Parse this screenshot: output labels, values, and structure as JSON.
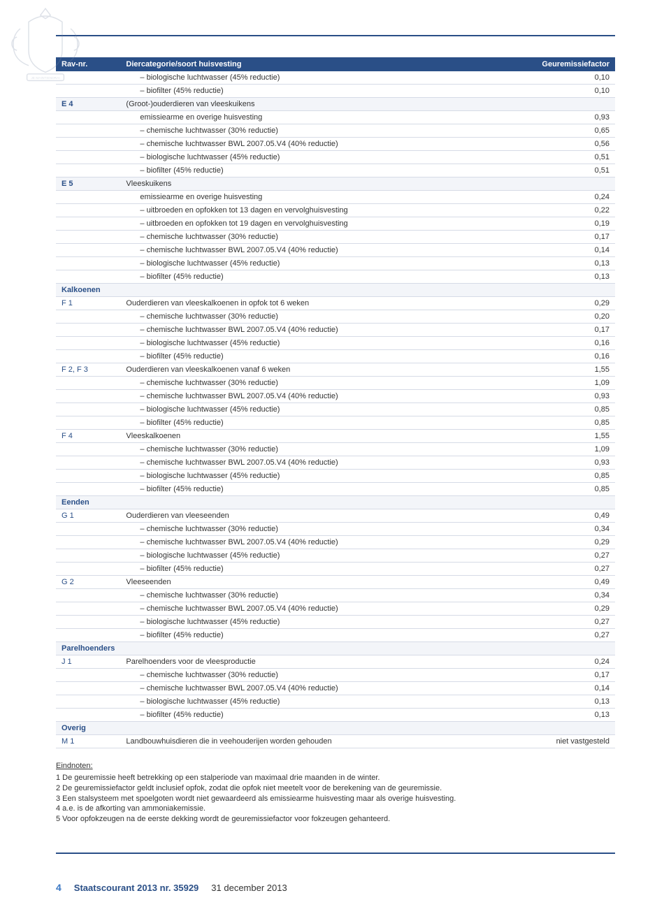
{
  "colors": {
    "header_bg": "#2a4f87",
    "header_text": "#ffffff",
    "row_border": "#d6dbe6",
    "cat_bg": "#f3f5f9",
    "rav_text": "#2a4f87",
    "footer_pn": "#3b78c4"
  },
  "header": {
    "c1": "Rav-nr.",
    "c2": "Diercategorie/soort huisvesting",
    "c3": "Geuremissiefactor"
  },
  "rows": [
    {
      "rav": "",
      "desc": "– biologische luchtwasser (45% reductie)",
      "val": "0,10",
      "indent": true
    },
    {
      "rav": "",
      "desc": "– biofilter (45% reductie)",
      "val": "0,10",
      "indent": true
    },
    {
      "rav": "E 4",
      "desc": "(Groot-)ouderdieren van vleeskuikens",
      "val": "",
      "cat": true
    },
    {
      "rav": "",
      "desc": "emissiearme en overige huisvesting",
      "val": "0,93",
      "indent": true
    },
    {
      "rav": "",
      "desc": "– chemische luchtwasser (30% reductie)",
      "val": "0,65",
      "indent": true
    },
    {
      "rav": "",
      "desc": "– chemische luchtwasser BWL 2007.05.V4 (40% reductie)",
      "val": "0,56",
      "indent": true
    },
    {
      "rav": "",
      "desc": "– biologische luchtwasser (45% reductie)",
      "val": "0,51",
      "indent": true
    },
    {
      "rav": "",
      "desc": "– biofilter (45% reductie)",
      "val": "0,51",
      "indent": true
    },
    {
      "rav": "E 5",
      "desc": "Vleeskuikens",
      "val": "",
      "cat": true
    },
    {
      "rav": "",
      "desc": "emissiearme en overige huisvesting",
      "val": "0,24",
      "indent": true
    },
    {
      "rav": "",
      "desc": "– uitbroeden en opfokken tot 13 dagen en vervolghuisvesting",
      "val": "0,22",
      "indent": true
    },
    {
      "rav": "",
      "desc": "– uitbroeden en opfokken tot 19 dagen en vervolghuisvesting",
      "val": "0,19",
      "indent": true
    },
    {
      "rav": "",
      "desc": "– chemische luchtwasser (30% reductie)",
      "val": "0,17",
      "indent": true
    },
    {
      "rav": "",
      "desc": "– chemische luchtwasser BWL 2007.05.V4 (40% reductie)",
      "val": "0,14",
      "indent": true
    },
    {
      "rav": "",
      "desc": "– biologische luchtwasser (45% reductie)",
      "val": "0,13",
      "indent": true
    },
    {
      "rav": "",
      "desc": "– biofilter (45% reductie)",
      "val": "0,13",
      "indent": true
    },
    {
      "rav": "Kalkoenen",
      "desc": "",
      "val": "",
      "cat": true,
      "bold": true
    },
    {
      "rav": "F 1",
      "desc": "Ouderdieren van vleeskalkoenen in opfok tot 6 weken",
      "val": "0,29"
    },
    {
      "rav": "",
      "desc": "– chemische luchtwasser (30% reductie)",
      "val": "0,20",
      "indent": true
    },
    {
      "rav": "",
      "desc": "– chemische luchtwasser BWL 2007.05.V4 (40% reductie)",
      "val": "0,17",
      "indent": true
    },
    {
      "rav": "",
      "desc": "– biologische luchtwasser (45% reductie)",
      "val": "0,16",
      "indent": true
    },
    {
      "rav": "",
      "desc": "– biofilter (45% reductie)",
      "val": "0,16",
      "indent": true
    },
    {
      "rav": "F 2, F 3",
      "desc": "Ouderdieren van vleeskalkoenen vanaf 6 weken",
      "val": "1,55"
    },
    {
      "rav": "",
      "desc": "– chemische luchtwasser (30% reductie)",
      "val": "1,09",
      "indent": true
    },
    {
      "rav": "",
      "desc": "– chemische luchtwasser BWL 2007.05.V4 (40% reductie)",
      "val": "0,93",
      "indent": true
    },
    {
      "rav": "",
      "desc": "– biologische luchtwasser (45% reductie)",
      "val": "0,85",
      "indent": true
    },
    {
      "rav": "",
      "desc": "– biofilter (45% reductie)",
      "val": "0,85",
      "indent": true
    },
    {
      "rav": "F 4",
      "desc": "Vleeskalkoenen",
      "val": "1,55"
    },
    {
      "rav": "",
      "desc": "– chemische luchtwasser (30% reductie)",
      "val": "1,09",
      "indent": true
    },
    {
      "rav": "",
      "desc": "– chemische luchtwasser BWL 2007.05.V4 (40% reductie)",
      "val": "0,93",
      "indent": true
    },
    {
      "rav": "",
      "desc": "– biologische luchtwasser (45% reductie)",
      "val": "0,85",
      "indent": true
    },
    {
      "rav": "",
      "desc": "– biofilter (45% reductie)",
      "val": "0,85",
      "indent": true
    },
    {
      "rav": "Eenden",
      "desc": "",
      "val": "",
      "cat": true,
      "bold": true
    },
    {
      "rav": "G 1",
      "desc": "Ouderdieren van vleeseenden",
      "val": "0,49"
    },
    {
      "rav": "",
      "desc": "– chemische luchtwasser (30% reductie)",
      "val": "0,34",
      "indent": true
    },
    {
      "rav": "",
      "desc": "– chemische luchtwasser BWL 2007.05.V4 (40% reductie)",
      "val": "0,29",
      "indent": true
    },
    {
      "rav": "",
      "desc": "– biologische luchtwasser (45% reductie)",
      "val": "0,27",
      "indent": true
    },
    {
      "rav": "",
      "desc": "– biofilter (45% reductie)",
      "val": "0,27",
      "indent": true
    },
    {
      "rav": "G 2",
      "desc": "Vleeseenden",
      "val": "0,49"
    },
    {
      "rav": "",
      "desc": "– chemische luchtwasser (30% reductie)",
      "val": "0,34",
      "indent": true
    },
    {
      "rav": "",
      "desc": "– chemische luchtwasser BWL 2007.05.V4 (40% reductie)",
      "val": "0,29",
      "indent": true
    },
    {
      "rav": "",
      "desc": "– biologische luchtwasser (45% reductie)",
      "val": "0,27",
      "indent": true
    },
    {
      "rav": "",
      "desc": "– biofilter (45% reductie)",
      "val": "0,27",
      "indent": true
    },
    {
      "rav": "Parelhoenders",
      "desc": "",
      "val": "",
      "cat": true,
      "bold": true
    },
    {
      "rav": "J 1",
      "desc": "Parelhoenders voor de vleesproductie",
      "val": "0,24"
    },
    {
      "rav": "",
      "desc": "– chemische luchtwasser (30% reductie)",
      "val": "0,17",
      "indent": true
    },
    {
      "rav": "",
      "desc": "– chemische luchtwasser BWL 2007.05.V4 (40% reductie)",
      "val": "0,14",
      "indent": true
    },
    {
      "rav": "",
      "desc": "– biologische luchtwasser (45% reductie)",
      "val": "0,13",
      "indent": true
    },
    {
      "rav": "",
      "desc": "– biofilter (45% reductie)",
      "val": "0,13",
      "indent": true
    },
    {
      "rav": "Overig",
      "desc": "",
      "val": "",
      "cat": true,
      "bold": true
    },
    {
      "rav": "M 1",
      "desc": "Landbouwhuisdieren die in veehouderijen worden gehouden",
      "val": "niet vastgesteld"
    }
  ],
  "endnotes": {
    "title": "Eindnoten:",
    "lines": [
      "1 De geuremissie heeft betrekking op een stalperiode van maximaal drie maanden in de winter.",
      "2 De geuremissiefactor geldt inclusief opfok, zodat die opfok niet meetelt voor de berekening van de geuremissie.",
      "3 Een stalsysteem met spoelgoten wordt niet gewaardeerd als emissiearme huisvesting maar als overige huisvesting.",
      "4 a.e. is de afkorting van ammoniakemissie.",
      "5 Voor opfokzeugen na de eerste dekking wordt de geuremissiefactor voor fokzeugen gehanteerd."
    ]
  },
  "footer": {
    "page": "4",
    "pub": "Staatscourant 2013 nr. 35929",
    "date": "31 december 2013"
  }
}
